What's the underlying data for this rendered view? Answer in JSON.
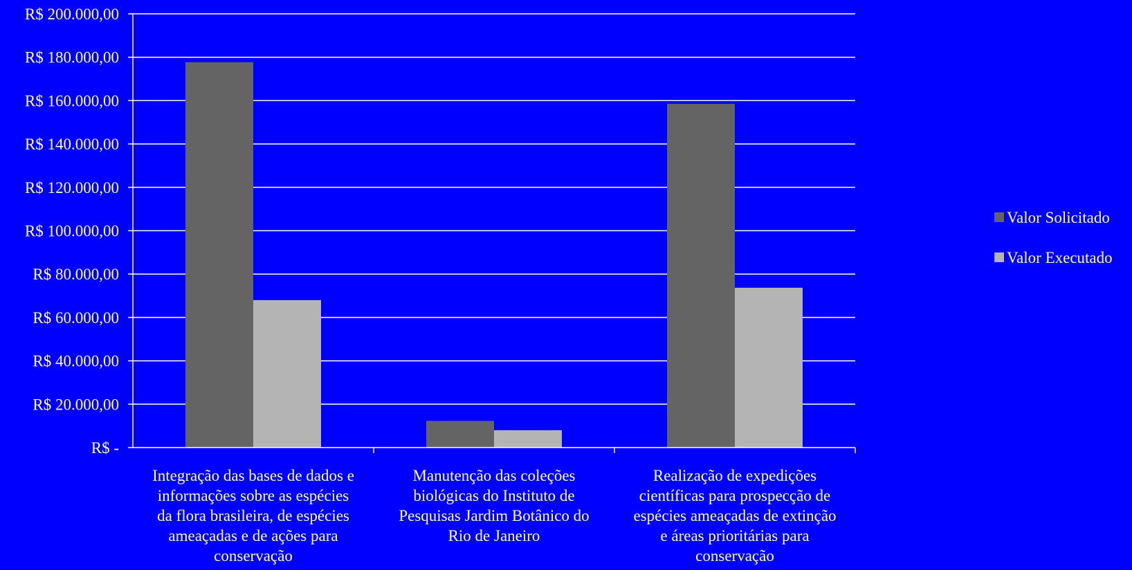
{
  "chart_data": {
    "type": "bar",
    "categories": [
      [
        "Integração das bases de dados e",
        "informações sobre as espécies",
        "da flora brasileira, de espécies",
        "ameaçadas e  de ações para",
        "conservação"
      ],
      [
        "Manutenção das coleções",
        "biológicas do Instituto de",
        "Pesquisas Jardim Botânico do",
        "Rio de Janeiro"
      ],
      [
        "Realização de expedições",
        "científicas para prospecção de",
        "espécies ameaçadas de extinção",
        "e áreas prioritárias para",
        "conservação"
      ]
    ],
    "series": [
      {
        "name": "Valor Solicitado",
        "color": "#646464",
        "values": [
          177700,
          12300,
          158500
        ]
      },
      {
        "name": "Valor Executado",
        "color": "#B4B4B4",
        "values": [
          68000,
          8000,
          73700
        ]
      }
    ],
    "yticks": [
      "R$ -",
      "R$ 20.000,00",
      "R$ 40.000,00",
      "R$ 60.000,00",
      "R$ 80.000,00",
      "R$ 100.000,00",
      "R$ 120.000,00",
      "R$ 140.000,00",
      "R$ 160.000,00",
      "R$ 180.000,00",
      "R$ 200.000,00"
    ],
    "ylim": [
      0,
      200000
    ],
    "grid": true,
    "legend_position": "right",
    "background_color": "#0000FF",
    "text_color": "#FFFFFF"
  }
}
